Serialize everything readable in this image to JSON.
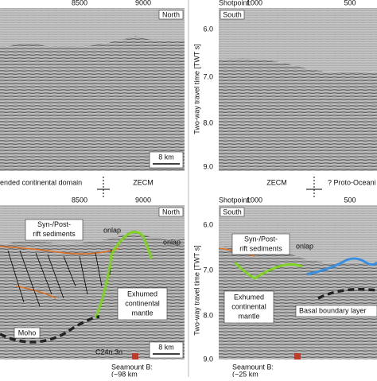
{
  "top_left": {
    "ticks": [
      "8500",
      "9000"
    ],
    "direction": "North",
    "scale": "8 km"
  },
  "top_right": {
    "shotpoint_label": "Shotpoint:",
    "ticks": [
      "1000",
      "500"
    ],
    "direction": "South",
    "yticks": [
      "6.0",
      "7.0",
      "8.0",
      "9.0"
    ],
    "y_label": "Two-way travel time [TWT s]"
  },
  "domains": {
    "left": "ended continental domain",
    "left_zecm": "ZECM",
    "right_zecm": "ZECM",
    "right": "? Proto-Oceani"
  },
  "bottom_left": {
    "ticks": [
      "8500",
      "9000"
    ],
    "direction": "North",
    "sediments": [
      "Syn-/Post-",
      "rift sediments"
    ],
    "onlap_1": "onlap",
    "onlap_2": "onlap",
    "mantle": [
      "Exhumed",
      "continental",
      "mantle"
    ],
    "moho": "Moho",
    "anomaly": "C24n.3n",
    "scale": "8 km",
    "seamount": [
      "Seamount B:",
      "(~98 km"
    ]
  },
  "bottom_right": {
    "shotpoint_label": "Shotpoint:",
    "ticks": [
      "1000",
      "500"
    ],
    "direction": "South",
    "yticks": [
      "6.0",
      "7.0",
      "8.0",
      "9.0"
    ],
    "y_label": "Two-way travel time [TWT s]",
    "sediments": [
      "Syn-/Post-",
      "rift sediments"
    ],
    "onlap": "onlap",
    "mantle": [
      "Exhumed",
      "continental",
      "mantle"
    ],
    "basal": "Basal boundary layer",
    "seamount": [
      "Seamount B:",
      "(~25 km"
    ]
  }
}
